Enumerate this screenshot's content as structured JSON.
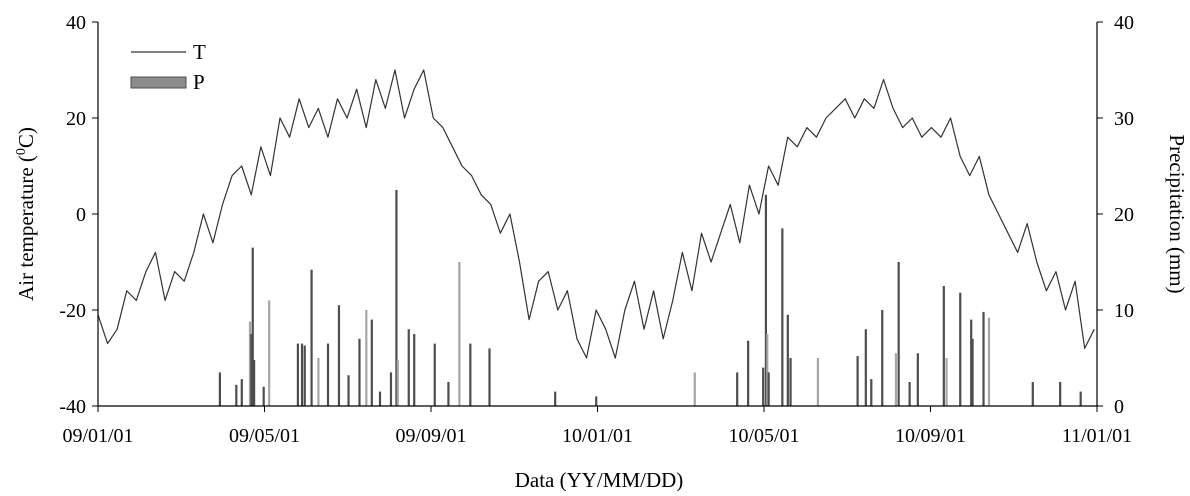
{
  "chart_data": {
    "type": "line",
    "xlabel": "Data (YY/MM/DD)",
    "ylabel_left": "Air temperature (",
    "ylabel_left_sup": "0",
    "ylabel_left_tail": "C)",
    "ylabel_right": "Precipitation (mm)",
    "x_ticks": [
      "09/01/01",
      "09/05/01",
      "09/09/01",
      "10/01/01",
      "10/05/01",
      "10/09/01",
      "11/01/01"
    ],
    "x_start": "2009-01-01",
    "x_end": "2011-01-01",
    "ylim_left": [
      -40,
      40
    ],
    "y_ticks_left": [
      "-40",
      "-20",
      "0",
      "20",
      "40"
    ],
    "ylim_right": [
      0,
      40
    ],
    "y_ticks_right": [
      "0",
      "10",
      "20",
      "30",
      "40"
    ],
    "legend": {
      "position": "top-left",
      "entries": [
        {
          "label": "T",
          "marker": "line"
        },
        {
          "label": "P",
          "marker": "bar"
        }
      ]
    },
    "colors": {
      "temperature": "#333333",
      "precip_dark": "#4d4d4d",
      "precip_light": "#a6a6a6"
    },
    "series": [
      {
        "name": "T",
        "axis": "left",
        "points": [
          [
            "2009-01-01",
            -21
          ],
          [
            "2009-01-08",
            -27
          ],
          [
            "2009-01-15",
            -24
          ],
          [
            "2009-01-22",
            -16
          ],
          [
            "2009-01-29",
            -18
          ],
          [
            "2009-02-05",
            -12
          ],
          [
            "2009-02-12",
            -8
          ],
          [
            "2009-02-19",
            -18
          ],
          [
            "2009-02-26",
            -12
          ],
          [
            "2009-03-05",
            -14
          ],
          [
            "2009-03-12",
            -8
          ],
          [
            "2009-03-19",
            0
          ],
          [
            "2009-03-26",
            -6
          ],
          [
            "2009-04-02",
            2
          ],
          [
            "2009-04-09",
            8
          ],
          [
            "2009-04-16",
            10
          ],
          [
            "2009-04-23",
            4
          ],
          [
            "2009-04-30",
            14
          ],
          [
            "2009-05-07",
            8
          ],
          [
            "2009-05-14",
            20
          ],
          [
            "2009-05-21",
            16
          ],
          [
            "2009-05-28",
            24
          ],
          [
            "2009-06-04",
            18
          ],
          [
            "2009-06-11",
            22
          ],
          [
            "2009-06-18",
            16
          ],
          [
            "2009-06-25",
            24
          ],
          [
            "2009-07-02",
            20
          ],
          [
            "2009-07-09",
            26
          ],
          [
            "2009-07-16",
            18
          ],
          [
            "2009-07-23",
            28
          ],
          [
            "2009-07-30",
            22
          ],
          [
            "2009-08-06",
            30
          ],
          [
            "2009-08-13",
            20
          ],
          [
            "2009-08-20",
            26
          ],
          [
            "2009-08-27",
            30
          ],
          [
            "2009-09-03",
            20
          ],
          [
            "2009-09-10",
            18
          ],
          [
            "2009-09-17",
            14
          ],
          [
            "2009-09-24",
            10
          ],
          [
            "2009-10-01",
            8
          ],
          [
            "2009-10-08",
            4
          ],
          [
            "2009-10-15",
            2
          ],
          [
            "2009-10-22",
            -4
          ],
          [
            "2009-10-29",
            0
          ],
          [
            "2009-11-05",
            -10
          ],
          [
            "2009-11-12",
            -22
          ],
          [
            "2009-11-19",
            -14
          ],
          [
            "2009-11-26",
            -12
          ],
          [
            "2009-12-03",
            -20
          ],
          [
            "2009-12-10",
            -16
          ],
          [
            "2009-12-17",
            -26
          ],
          [
            "2009-12-24",
            -30
          ],
          [
            "2009-12-31",
            -20
          ],
          [
            "2010-01-07",
            -24
          ],
          [
            "2010-01-14",
            -30
          ],
          [
            "2010-01-21",
            -20
          ],
          [
            "2010-01-28",
            -14
          ],
          [
            "2010-02-04",
            -24
          ],
          [
            "2010-02-11",
            -16
          ],
          [
            "2010-02-18",
            -26
          ],
          [
            "2010-02-25",
            -18
          ],
          [
            "2010-03-04",
            -8
          ],
          [
            "2010-03-11",
            -16
          ],
          [
            "2010-03-18",
            -4
          ],
          [
            "2010-03-25",
            -10
          ],
          [
            "2010-04-01",
            -4
          ],
          [
            "2010-04-08",
            2
          ],
          [
            "2010-04-15",
            -6
          ],
          [
            "2010-04-22",
            6
          ],
          [
            "2010-04-29",
            0
          ],
          [
            "2010-05-06",
            10
          ],
          [
            "2010-05-13",
            6
          ],
          [
            "2010-05-20",
            16
          ],
          [
            "2010-05-27",
            14
          ],
          [
            "2010-06-03",
            18
          ],
          [
            "2010-06-10",
            16
          ],
          [
            "2010-06-17",
            20
          ],
          [
            "2010-06-24",
            22
          ],
          [
            "2010-07-01",
            24
          ],
          [
            "2010-07-08",
            20
          ],
          [
            "2010-07-15",
            24
          ],
          [
            "2010-07-22",
            22
          ],
          [
            "2010-07-29",
            28
          ],
          [
            "2010-08-05",
            22
          ],
          [
            "2010-08-12",
            18
          ],
          [
            "2010-08-19",
            20
          ],
          [
            "2010-08-26",
            16
          ],
          [
            "2010-09-02",
            18
          ],
          [
            "2010-09-09",
            16
          ],
          [
            "2010-09-16",
            20
          ],
          [
            "2010-09-23",
            12
          ],
          [
            "2010-09-30",
            8
          ],
          [
            "2010-10-07",
            12
          ],
          [
            "2010-10-14",
            4
          ],
          [
            "2010-10-21",
            0
          ],
          [
            "2010-10-28",
            -4
          ],
          [
            "2010-11-04",
            -8
          ],
          [
            "2010-11-11",
            -2
          ],
          [
            "2010-11-18",
            -10
          ],
          [
            "2010-11-25",
            -16
          ],
          [
            "2010-12-02",
            -12
          ],
          [
            "2010-12-09",
            -20
          ],
          [
            "2010-12-16",
            -14
          ],
          [
            "2010-12-23",
            -28
          ],
          [
            "2010-12-30",
            -24
          ]
        ]
      },
      {
        "name": "P",
        "axis": "right",
        "type": "bar",
        "points": [
          [
            "2009-03-31",
            3.5
          ],
          [
            "2009-04-12",
            2.2
          ],
          [
            "2009-04-16",
            2.8
          ],
          [
            "2009-04-22",
            8.8
          ],
          [
            "2009-04-23",
            7.5
          ],
          [
            "2009-04-24",
            16.5
          ],
          [
            "2009-04-25",
            4.8
          ],
          [
            "2009-05-02",
            2.0
          ],
          [
            "2009-05-06",
            11.0
          ],
          [
            "2009-05-27",
            6.5
          ],
          [
            "2009-05-30",
            6.5
          ],
          [
            "2009-06-01",
            6.3
          ],
          [
            "2009-06-06",
            14.2
          ],
          [
            "2009-06-11",
            5.0
          ],
          [
            "2009-06-18",
            6.5
          ],
          [
            "2009-06-26",
            10.5
          ],
          [
            "2009-07-03",
            3.2
          ],
          [
            "2009-07-11",
            7.0
          ],
          [
            "2009-07-16",
            10.0
          ],
          [
            "2009-07-20",
            9.0
          ],
          [
            "2009-07-26",
            1.5
          ],
          [
            "2009-08-03",
            3.5
          ],
          [
            "2009-08-07",
            22.5
          ],
          [
            "2009-08-08",
            4.8
          ],
          [
            "2009-08-16",
            8.0
          ],
          [
            "2009-08-20",
            7.5
          ],
          [
            "2009-09-04",
            6.5
          ],
          [
            "2009-09-14",
            2.5
          ],
          [
            "2009-09-22",
            15.0
          ],
          [
            "2009-09-30",
            6.5
          ],
          [
            "2009-10-14",
            6.0
          ],
          [
            "2009-12-01",
            1.5
          ],
          [
            "2009-12-31",
            1.0
          ],
          [
            "2010-03-13",
            3.5
          ],
          [
            "2010-04-13",
            3.5
          ],
          [
            "2010-04-21",
            6.8
          ],
          [
            "2010-05-02",
            4.0
          ],
          [
            "2010-05-04",
            22.0
          ],
          [
            "2010-05-05",
            7.5
          ],
          [
            "2010-05-06",
            3.5
          ],
          [
            "2010-05-16",
            18.5
          ],
          [
            "2010-05-20",
            9.5
          ],
          [
            "2010-05-22",
            5.0
          ],
          [
            "2010-06-11",
            5.0
          ],
          [
            "2010-07-10",
            5.2
          ],
          [
            "2010-07-16",
            8.0
          ],
          [
            "2010-07-20",
            2.8
          ],
          [
            "2010-07-28",
            10.0
          ],
          [
            "2010-08-07",
            5.5
          ],
          [
            "2010-08-09",
            15.0
          ],
          [
            "2010-08-17",
            2.5
          ],
          [
            "2010-08-23",
            5.5
          ],
          [
            "2010-09-11",
            12.5
          ],
          [
            "2010-09-13",
            5.0
          ],
          [
            "2010-09-23",
            11.8
          ],
          [
            "2010-10-01",
            9.0
          ],
          [
            "2010-10-02",
            7.0
          ],
          [
            "2010-10-10",
            9.8
          ],
          [
            "2010-10-14",
            9.2
          ],
          [
            "2010-11-15",
            2.5
          ],
          [
            "2010-12-05",
            2.5
          ],
          [
            "2010-12-20",
            1.5
          ]
        ]
      }
    ]
  }
}
